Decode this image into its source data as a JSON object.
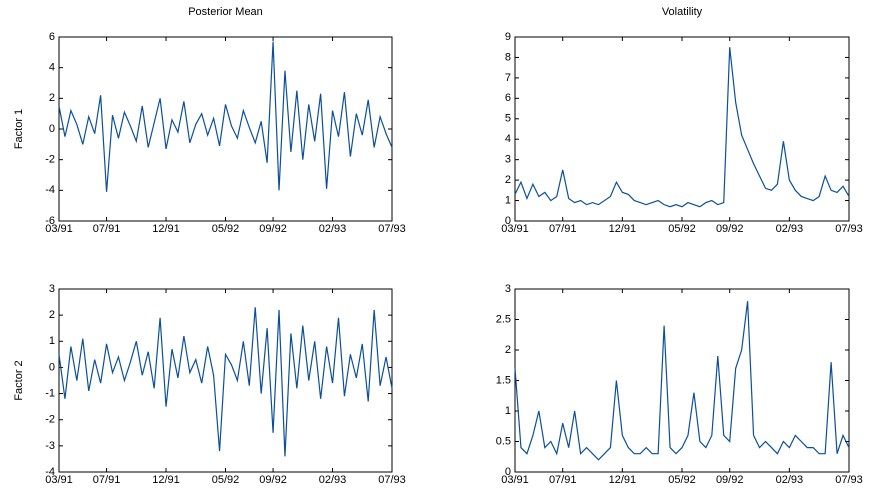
{
  "chart_data": [
    {
      "type": "line",
      "title": "Posterior Mean",
      "ylabel": "Factor 1",
      "x": [
        0,
        0.5,
        1,
        1.5,
        2,
        2.5,
        3,
        3.5,
        4,
        4.5,
        5,
        5.5,
        6,
        6.5,
        7,
        7.5,
        8,
        8.5,
        9,
        9.5,
        10,
        10.5,
        11,
        11.5,
        12,
        12.5,
        13,
        13.5,
        14,
        14.5,
        15,
        15.5,
        16,
        16.5,
        17,
        17.5,
        18,
        18.5,
        19,
        19.5,
        20,
        20.5,
        21,
        21.5,
        22,
        22.5,
        23,
        23.5,
        24,
        24.5,
        25,
        25.5,
        26,
        26.5,
        27,
        27.5,
        28
      ],
      "series": [
        {
          "color": "#0b4f9c",
          "values": [
            1.5,
            -0.5,
            1.2,
            0.3,
            -1.0,
            0.8,
            -0.3,
            2.2,
            -4.1,
            0.9,
            -0.6,
            1.1,
            0.2,
            -0.8,
            1.5,
            -1.2,
            0.4,
            2.0,
            -1.3,
            0.6,
            -0.2,
            1.8,
            -0.9,
            0.3,
            1.0,
            -0.4,
            0.7,
            -1.1,
            1.6,
            0.2,
            -0.6,
            1.2,
            0.1,
            -0.9,
            0.5,
            -2.2,
            5.7,
            -4.0,
            3.8,
            -1.5,
            2.5,
            -2.0,
            1.6,
            -0.8,
            2.3,
            -3.9,
            1.2,
            -0.5,
            2.4,
            -1.8,
            1.0,
            -0.4,
            1.9,
            -1.2,
            0.8,
            -0.3,
            -1.2
          ]
        }
      ],
      "xlim": [
        0,
        28
      ],
      "xticks": [
        {
          "value": 0,
          "label": "03/91"
        },
        {
          "value": 4,
          "label": "07/91"
        },
        {
          "value": 9,
          "label": "12/91"
        },
        {
          "value": 14,
          "label": "05/92"
        },
        {
          "value": 18,
          "label": "09/92"
        },
        {
          "value": 23,
          "label": "02/93"
        },
        {
          "value": 28,
          "label": "07/93"
        }
      ],
      "ylim": [
        -6,
        6
      ],
      "yticks": [
        -6,
        -4,
        -2,
        0,
        2,
        4,
        6
      ]
    },
    {
      "type": "line",
      "title": "Volatility",
      "x": [
        0,
        0.5,
        1,
        1.5,
        2,
        2.5,
        3,
        3.5,
        4,
        4.5,
        5,
        5.5,
        6,
        6.5,
        7,
        7.5,
        8,
        8.5,
        9,
        9.5,
        10,
        10.5,
        11,
        11.5,
        12,
        12.5,
        13,
        13.5,
        14,
        14.5,
        15,
        15.5,
        16,
        16.5,
        17,
        17.5,
        18,
        18.5,
        19,
        19.5,
        20,
        20.5,
        21,
        21.5,
        22,
        22.5,
        23,
        23.5,
        24,
        24.5,
        25,
        25.5,
        26,
        26.5,
        27,
        27.5,
        28
      ],
      "series": [
        {
          "color": "#0b4f9c",
          "values": [
            1.3,
            1.9,
            1.1,
            1.8,
            1.2,
            1.4,
            1.0,
            1.2,
            2.5,
            1.1,
            0.9,
            1.0,
            0.8,
            0.9,
            0.8,
            1.0,
            1.2,
            1.9,
            1.4,
            1.3,
            1.0,
            0.9,
            0.8,
            0.9,
            1.0,
            0.8,
            0.7,
            0.8,
            0.7,
            0.9,
            0.8,
            0.7,
            0.9,
            1.0,
            0.8,
            0.9,
            8.5,
            5.8,
            4.2,
            3.5,
            2.8,
            2.2,
            1.6,
            1.5,
            1.8,
            3.9,
            2.0,
            1.5,
            1.2,
            1.1,
            1.0,
            1.2,
            2.2,
            1.5,
            1.4,
            1.7,
            1.2
          ]
        }
      ],
      "xlim": [
        0,
        28
      ],
      "xticks": [
        {
          "value": 0,
          "label": "03/91"
        },
        {
          "value": 4,
          "label": "07/91"
        },
        {
          "value": 9,
          "label": "12/91"
        },
        {
          "value": 14,
          "label": "05/92"
        },
        {
          "value": 18,
          "label": "09/92"
        },
        {
          "value": 23,
          "label": "02/93"
        },
        {
          "value": 28,
          "label": "07/93"
        }
      ],
      "ylim": [
        0,
        9
      ],
      "yticks": [
        0,
        1,
        2,
        3,
        4,
        5,
        6,
        7,
        8,
        9
      ]
    },
    {
      "type": "line",
      "ylabel": "Factor 2",
      "x": [
        0,
        0.5,
        1,
        1.5,
        2,
        2.5,
        3,
        3.5,
        4,
        4.5,
        5,
        5.5,
        6,
        6.5,
        7,
        7.5,
        8,
        8.5,
        9,
        9.5,
        10,
        10.5,
        11,
        11.5,
        12,
        12.5,
        13,
        13.5,
        14,
        14.5,
        15,
        15.5,
        16,
        16.5,
        17,
        17.5,
        18,
        18.5,
        19,
        19.5,
        20,
        20.5,
        21,
        21.5,
        22,
        22.5,
        23,
        23.5,
        24,
        24.5,
        25,
        25.5,
        26,
        26.5,
        27,
        27.5,
        28
      ],
      "series": [
        {
          "color": "#0b4f9c",
          "values": [
            0.5,
            -1.2,
            0.8,
            -0.5,
            1.1,
            -0.9,
            0.3,
            -0.6,
            0.9,
            -0.2,
            0.4,
            -0.5,
            0.2,
            1.0,
            -0.3,
            0.6,
            -0.8,
            1.9,
            -1.5,
            0.7,
            -0.4,
            1.2,
            -0.2,
            0.3,
            -0.6,
            0.8,
            -0.3,
            -3.2,
            0.5,
            0.1,
            -0.5,
            1.0,
            -0.7,
            2.3,
            -1.0,
            1.5,
            -2.5,
            2.2,
            -3.4,
            1.3,
            -0.8,
            1.6,
            -0.5,
            1.0,
            -1.2,
            0.8,
            -0.6,
            1.9,
            -1.1,
            0.5,
            -0.4,
            0.9,
            -1.3,
            2.2,
            -0.7,
            0.4,
            -0.8
          ]
        }
      ],
      "xlim": [
        0,
        28
      ],
      "xticks": [
        {
          "value": 0,
          "label": "03/91"
        },
        {
          "value": 4,
          "label": "07/91"
        },
        {
          "value": 9,
          "label": "12/91"
        },
        {
          "value": 14,
          "label": "05/92"
        },
        {
          "value": 18,
          "label": "09/92"
        },
        {
          "value": 23,
          "label": "02/93"
        },
        {
          "value": 28,
          "label": "07/93"
        }
      ],
      "ylim": [
        -4,
        3
      ],
      "yticks": [
        -4,
        -3,
        -2,
        -1,
        0,
        1,
        2,
        3
      ]
    },
    {
      "type": "line",
      "x": [
        0,
        0.5,
        1,
        1.5,
        2,
        2.5,
        3,
        3.5,
        4,
        4.5,
        5,
        5.5,
        6,
        6.5,
        7,
        7.5,
        8,
        8.5,
        9,
        9.5,
        10,
        10.5,
        11,
        11.5,
        12,
        12.5,
        13,
        13.5,
        14,
        14.5,
        15,
        15.5,
        16,
        16.5,
        17,
        17.5,
        18,
        18.5,
        19,
        19.5,
        20,
        20.5,
        21,
        21.5,
        22,
        22.5,
        23,
        23.5,
        24,
        24.5,
        25,
        25.5,
        26,
        26.5,
        27,
        27.5,
        28
      ],
      "series": [
        {
          "color": "#0b4f9c",
          "values": [
            1.7,
            0.4,
            0.3,
            0.6,
            1.0,
            0.4,
            0.5,
            0.3,
            0.8,
            0.4,
            1.0,
            0.3,
            0.4,
            0.3,
            0.2,
            0.3,
            0.4,
            1.5,
            0.6,
            0.4,
            0.3,
            0.3,
            0.4,
            0.3,
            0.3,
            2.4,
            0.4,
            0.3,
            0.4,
            0.6,
            1.3,
            0.5,
            0.4,
            0.6,
            1.9,
            0.6,
            0.5,
            1.7,
            2.0,
            2.8,
            0.6,
            0.4,
            0.5,
            0.4,
            0.3,
            0.5,
            0.4,
            0.6,
            0.5,
            0.4,
            0.4,
            0.3,
            0.3,
            1.8,
            0.3,
            0.6,
            0.4
          ]
        }
      ],
      "xlim": [
        0,
        28
      ],
      "xticks": [
        {
          "value": 0,
          "label": "03/91"
        },
        {
          "value": 4,
          "label": "07/91"
        },
        {
          "value": 9,
          "label": "12/91"
        },
        {
          "value": 14,
          "label": "05/92"
        },
        {
          "value": 18,
          "label": "09/92"
        },
        {
          "value": 23,
          "label": "02/93"
        },
        {
          "value": 28,
          "label": "07/93"
        }
      ],
      "ylim": [
        0,
        3
      ],
      "yticks": [
        0,
        0.5,
        1,
        1.5,
        2,
        2.5,
        3
      ]
    }
  ]
}
